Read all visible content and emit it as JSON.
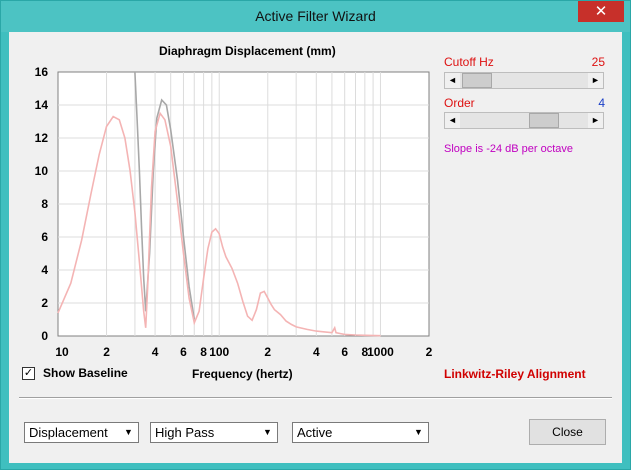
{
  "window": {
    "title": "Active Filter Wizard",
    "close_glyph": "✕"
  },
  "chart_data": {
    "type": "line",
    "title": "Diaphragm Displacement (mm)",
    "xlabel": "Frequency (hertz)",
    "ylabel": "",
    "xscale": "log",
    "xlim": [
      10,
      2000
    ],
    "ylim": [
      0,
      16
    ],
    "y_ticks": [
      "0",
      "2",
      "4",
      "6",
      "8",
      "10",
      "12",
      "14",
      "16"
    ],
    "x_ticks": [
      {
        "v": 10,
        "label": "10"
      },
      {
        "v": 20,
        "label": "2"
      },
      {
        "v": 40,
        "label": "4"
      },
      {
        "v": 60,
        "label": "6"
      },
      {
        "v": 80,
        "label": "8"
      },
      {
        "v": 100,
        "label": "100"
      },
      {
        "v": 200,
        "label": "2"
      },
      {
        "v": 400,
        "label": "4"
      },
      {
        "v": 600,
        "label": "6"
      },
      {
        "v": 800,
        "label": "8"
      },
      {
        "v": 1000,
        "label": "1000"
      },
      {
        "v": 2000,
        "label": "2"
      }
    ],
    "grid": true,
    "series": [
      {
        "color": "#a8a8a8",
        "x": [
          30,
          31,
          32,
          33,
          34,
          35,
          37,
          39,
          41,
          44,
          47,
          50,
          55,
          60,
          65,
          70
        ],
        "y": [
          16,
          13,
          10,
          6.5,
          3.5,
          1.5,
          5,
          10,
          13.2,
          14.3,
          14,
          12.5,
          9.5,
          6,
          3,
          1
        ]
      },
      {
        "color": "#f4b4b4",
        "x": [
          10,
          12,
          14,
          16,
          18,
          20,
          22,
          24,
          26,
          28,
          30,
          32,
          34,
          35,
          36,
          38,
          40,
          43,
          46,
          50,
          55,
          60,
          65,
          70,
          75,
          80,
          85,
          90,
          95,
          100,
          105,
          110,
          120,
          130,
          140,
          150,
          160,
          170,
          180,
          190,
          200,
          210,
          220,
          240,
          260,
          280,
          300,
          350,
          400,
          450,
          500,
          520,
          530,
          560,
          600,
          700,
          800,
          1000
        ],
        "y": [
          1.4,
          3.2,
          5.8,
          8.6,
          11,
          12.7,
          13.3,
          13.1,
          12,
          10,
          7.5,
          4.5,
          1.5,
          0.5,
          3,
          9,
          12.4,
          13.5,
          13.1,
          11.5,
          8.2,
          5,
          2.3,
          0.8,
          1.5,
          3.5,
          5.3,
          6.3,
          6.5,
          6.2,
          5.4,
          4.8,
          4.1,
          3.2,
          2.1,
          1.2,
          0.95,
          1.6,
          2.6,
          2.7,
          2.3,
          1.9,
          1.6,
          1.3,
          0.9,
          0.7,
          0.55,
          0.4,
          0.3,
          0.25,
          0.2,
          0.5,
          0.2,
          0.15,
          0.1,
          0.06,
          0.04,
          0.02
        ]
      }
    ]
  },
  "baseline": {
    "checked_glyph": "✓",
    "label": "Show Baseline"
  },
  "cutoff": {
    "label": "Cutoff  Hz",
    "value": "25",
    "level": 0.02
  },
  "order": {
    "label": "Order",
    "value": "4",
    "level": 0.6
  },
  "slope_text": "Slope is -24 dB per octave",
  "alignment_text": "Linkwitz-Riley Alignment",
  "selects": {
    "view": "Displacement",
    "filter": "High Pass",
    "mode": "Active"
  },
  "close_label": "Close",
  "arrows": {
    "left": "◄",
    "right": "►",
    "down": "▼"
  }
}
